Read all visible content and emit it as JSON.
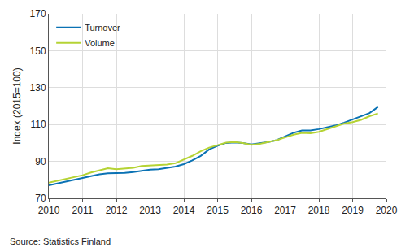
{
  "chart_data": {
    "type": "line",
    "y_label": "Index (2015=100)",
    "annotations": [
      {
        "text": "Source: Statistics Finland"
      }
    ],
    "x": [
      2010.0,
      2010.25,
      2010.5,
      2010.75,
      2011.0,
      2011.25,
      2011.5,
      2011.75,
      2012.0,
      2012.25,
      2012.5,
      2012.75,
      2013.0,
      2013.25,
      2013.5,
      2013.75,
      2014.0,
      2014.25,
      2014.5,
      2014.75,
      2015.0,
      2015.25,
      2015.5,
      2015.75,
      2016.0,
      2016.25,
      2016.5,
      2016.75,
      2017.0,
      2017.25,
      2017.5,
      2017.75,
      2018.0,
      2018.25,
      2018.5,
      2018.75,
      2019.0,
      2019.25,
      2019.5,
      2019.75
    ],
    "series": [
      {
        "name": "Turnover",
        "color": "#0a72b4",
        "values": [
          77,
          78,
          79,
          80,
          80.8,
          82,
          83,
          83.5,
          83.5,
          83.8,
          84.2,
          85,
          85.5,
          85.8,
          86.5,
          87.2,
          88.5,
          90.5,
          93,
          96.5,
          98.5,
          100,
          100.3,
          100,
          99.2,
          99.8,
          100.5,
          101.5,
          103.5,
          105.5,
          106.8,
          106.8,
          107.5,
          108.5,
          109.5,
          111,
          112.8,
          114.3,
          116.2,
          119.5
        ]
      },
      {
        "name": "Volume",
        "color": "#b5d334",
        "values": [
          78.5,
          79.5,
          80.2,
          81.5,
          82.5,
          84,
          85.3,
          86.3,
          85.8,
          86.2,
          86.5,
          87.5,
          87.8,
          87.8,
          88.3,
          89,
          91,
          93,
          95.5,
          97.5,
          98.8,
          100.2,
          100.5,
          100,
          99,
          99.5,
          100.5,
          101.5,
          103,
          104.5,
          105.5,
          105.2,
          106,
          107.5,
          109,
          110.5,
          111.3,
          112.5,
          114.5,
          116
        ]
      }
    ],
    "xlim": [
      2010,
      2020
    ],
    "xticks": [
      2010,
      2011,
      2012,
      2013,
      2014,
      2015,
      2016,
      2017,
      2018,
      2019,
      2020
    ],
    "ylim": [
      70,
      170
    ],
    "yticks": [
      70,
      90,
      110,
      130,
      150,
      170
    ],
    "grid": true,
    "legend": "upper left"
  }
}
